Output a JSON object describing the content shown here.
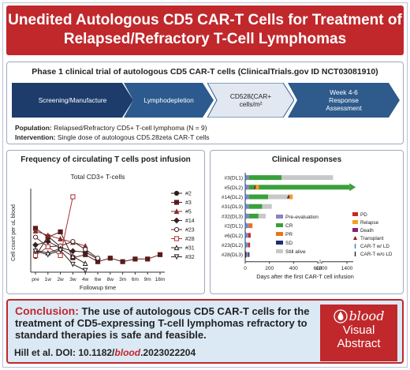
{
  "title": {
    "line1": "Unedited Autologous CD5 CAR-T Cells for Treatment of",
    "line2": "Relapsed/Refractory T-Cell Lymphomas"
  },
  "trial": {
    "heading": "Phase 1 clinical trial of autologous CD5 CAR-T cells (ClinicalTrials.gov ID NCT03081910)",
    "steps": [
      "Screening/Manufacture",
      "Lymphodepletion",
      "CD528ζCAR+ cells/m²",
      "Week 4-6 Response Assessment"
    ],
    "population_label": "Population:",
    "population_text": "Relapsed/Refractory CD5+ T-cell lymphoma (N = 9)",
    "intervention_label": "Intervention:",
    "intervention_text": "Single dose of autologous CD5.28zeta CAR-T cells",
    "colors": [
      "#1d3c6b",
      "#2c5a8e",
      "#e1e8f2",
      "#2e5a8c"
    ]
  },
  "left_panel": {
    "heading": "Frequency of circulating T cells post infusion"
  },
  "right_panel": {
    "heading": "Clinical responses"
  },
  "chart_data": [
    {
      "type": "line",
      "title": "Total CD3+ T-cells",
      "xlabel": "Followup time",
      "ylabel": "Cell count per uL blood",
      "categories": [
        "pre",
        "1w",
        "2w",
        "3w",
        "4w",
        "6w",
        "8w",
        "3m",
        "6m",
        "9m",
        "18m"
      ],
      "yticks_shown": false,
      "series": [
        {
          "name": "#2",
          "color": "#2a1f1f",
          "marker": "circle-filled",
          "values": [
            180,
            410,
            290,
            null,
            null,
            null,
            null,
            null,
            null,
            null,
            null
          ]
        },
        {
          "name": "#3",
          "color": "#5b1a1a",
          "marker": "square-filled",
          "values": [
            500,
            400,
            460,
            165,
            200,
            120,
            160,
            120,
            150,
            150,
            200
          ]
        },
        {
          "name": "#5",
          "color": "#8b2a2a",
          "marker": "triangle-filled",
          "values": [
            470,
            420,
            380,
            340,
            300,
            null,
            null,
            null,
            null,
            null,
            null
          ]
        },
        {
          "name": "#14",
          "color": "#3a2020",
          "marker": "diamond-filled",
          "values": [
            310,
            350,
            280,
            240,
            230,
            150,
            null,
            null,
            null,
            null,
            null
          ]
        },
        {
          "name": "#23",
          "color": "#4a2828",
          "marker": "circle-open",
          "values": [
            400,
            290,
            300,
            350,
            260,
            160,
            null,
            null,
            null,
            null,
            null
          ]
        },
        {
          "name": "#28",
          "color": "#b03030",
          "marker": "square-open",
          "values": [
            190,
            290,
            190,
            860,
            null,
            null,
            null,
            null,
            null,
            null,
            null
          ]
        },
        {
          "name": "#31",
          "color": "#2a1f1f",
          "marker": "triangle-open",
          "values": [
            250,
            220,
            270,
            180,
            100,
            null,
            null,
            null,
            null,
            null,
            null
          ]
        },
        {
          "name": "#32",
          "color": "#2a1f1f",
          "marker": "triangle-down-open",
          "values": [
            240,
            200,
            250,
            90,
            20,
            null,
            null,
            null,
            null,
            null,
            null
          ]
        }
      ]
    },
    {
      "type": "bar",
      "orientation": "horizontal",
      "xlabel": "Days after the first CAR-T cell infusion",
      "xticks": [
        "0",
        "200",
        "400",
        "600",
        "1200",
        "1400"
      ],
      "axis_break": [
        600,
        1200
      ],
      "xlim": [
        0,
        1400
      ],
      "patients": [
        "#3(DL1)",
        "#5(DL2)",
        "#14(DL2)",
        "#31(DL3)",
        "#32(DL3)",
        "#2(DL1)",
        "#6(DL2)",
        "#23(DL2)",
        "#28(DL3)"
      ],
      "rows": [
        {
          "segments": [
            {
              "status": "Pre-evaluation",
              "start": 0,
              "end": 30
            },
            {
              "status": "CR",
              "start": 30,
              "end": 300
            },
            {
              "status": "Still alive",
              "start": 300,
              "end": 1290
            }
          ],
          "events": [
            {
              "type": "CAR-T w/ LD",
              "day": 0
            }
          ]
        },
        {
          "segments": [
            {
              "status": "Pre-evaluation",
              "start": 0,
              "end": 30
            },
            {
              "status": "CR",
              "start": 30,
              "end": 1420
            }
          ],
          "events": [
            {
              "type": "CAR-T w/ LD",
              "day": 0
            },
            {
              "type": "Transplant",
              "day": 85
            },
            {
              "type": "Relapse",
              "day": 100
            }
          ],
          "arrow": true
        },
        {
          "segments": [
            {
              "status": "Pre-evaluation",
              "start": 0,
              "end": 30
            },
            {
              "status": "CR",
              "start": 30,
              "end": 190
            },
            {
              "status": "Still alive",
              "start": 190,
              "end": 380
            }
          ],
          "events": [
            {
              "type": "CAR-T w/ LD",
              "day": 0
            },
            {
              "type": "Transplant",
              "day": 360
            },
            {
              "type": "Relapse",
              "day": 380
            }
          ]
        },
        {
          "segments": [
            {
              "status": "Pre-evaluation",
              "start": 0,
              "end": 30
            },
            {
              "status": "CR",
              "start": 30,
              "end": 140
            },
            {
              "status": "Still alive",
              "start": 140,
              "end": 220
            }
          ],
          "events": [
            {
              "type": "CAR-T w/ LD",
              "day": 0
            }
          ]
        },
        {
          "segments": [
            {
              "status": "Pre-evaluation",
              "start": 0,
              "end": 30
            },
            {
              "status": "CR",
              "start": 30,
              "end": 110
            },
            {
              "status": "Still alive",
              "start": 110,
              "end": 170
            }
          ],
          "events": [
            {
              "type": "CAR-T w/ LD",
              "day": 0
            }
          ]
        },
        {
          "segments": [
            {
              "status": "Pre-evaluation",
              "start": 0,
              "end": 30
            },
            {
              "status": "PR",
              "start": 30,
              "end": 60
            }
          ],
          "events": [
            {
              "type": "CAR-T w/ LD",
              "day": 0
            }
          ]
        },
        {
          "segments": [
            {
              "status": "Pre-evaluation",
              "start": 0,
              "end": 25
            },
            {
              "status": "PD",
              "start": 25,
              "end": 45
            }
          ],
          "events": [
            {
              "type": "CAR-T w/ LD",
              "day": 0
            }
          ]
        },
        {
          "segments": [
            {
              "status": "Pre-evaluation",
              "start": 0,
              "end": 25
            },
            {
              "status": "PD",
              "start": 25,
              "end": 40
            }
          ],
          "events": [
            {
              "type": "CAR-T w/ LD",
              "day": 0
            }
          ]
        },
        {
          "segments": [
            {
              "status": "Pre-evaluation",
              "start": 0,
              "end": 25
            },
            {
              "status": "SD",
              "start": 25,
              "end": 35
            }
          ],
          "events": [
            {
              "type": "CAR-T w/o LD",
              "day": 0
            }
          ]
        }
      ],
      "status_colors": {
        "Pre-evaluation": "#8a82c2",
        "CR": "#3aa03c",
        "PR": "#e9731b",
        "SD": "#1f2f6e",
        "Still alive": "#c8c8c8",
        "PD": "#c92626",
        "Relapse": "#f0a028",
        "Death": "#8a1f6e",
        "Transplant": "#8b1f1f"
      },
      "legend_left": [
        "Pre-evaluation",
        "CR",
        "PR",
        "SD",
        "Still alive"
      ],
      "legend_right": [
        "PD",
        "Relapse",
        "Death",
        "Transplant",
        "CAR-T w/ LD",
        "CAR-T w/o LD"
      ]
    }
  ],
  "conclusion": {
    "label": "Conclusion:",
    "text": "The use of autologous CD5 CAR-T cells for the treatment of CD5-expressing T-cell lymphomas refractory to standard therapies is safe and feasible.",
    "cite_prefix": "Hill et al. DOI: 10.1182/",
    "cite_journal": "blood",
    "cite_suffix": ".2023022204"
  },
  "badge": {
    "word": "blood",
    "line1": "Visual",
    "line2": "Abstract"
  }
}
